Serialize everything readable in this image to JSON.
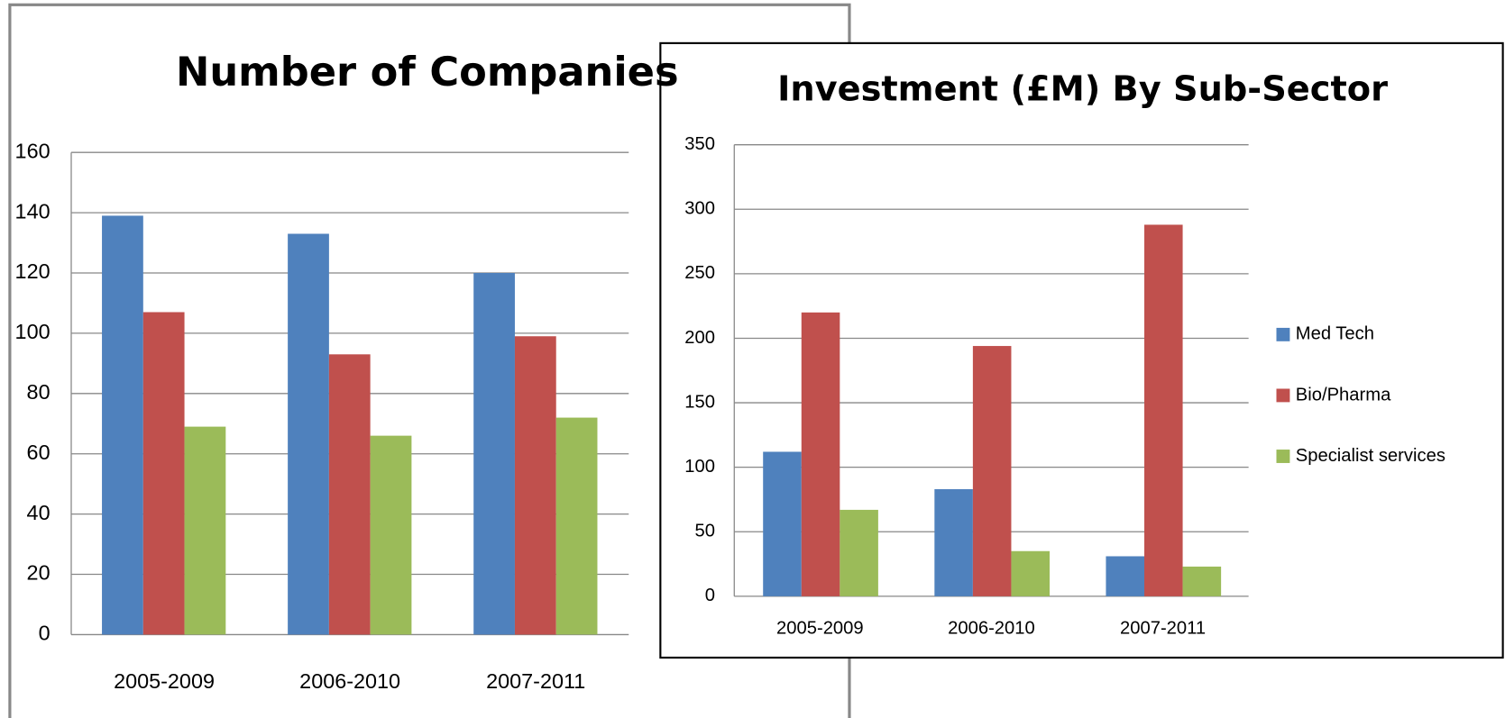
{
  "chart_data": [
    {
      "type": "bar",
      "title": "Number of Companies",
      "categories": [
        "2005-2009",
        "2006-2010",
        "2007-2011"
      ],
      "series": [
        {
          "color": "#4f81bd",
          "values": [
            139,
            133,
            120
          ]
        },
        {
          "color": "#c0504d",
          "values": [
            107,
            93,
            99
          ]
        },
        {
          "color": "#9bbb59",
          "values": [
            69,
            66,
            72
          ]
        }
      ],
      "ylim": [
        0,
        160
      ],
      "yticks": [
        0,
        20,
        40,
        60,
        80,
        100,
        120,
        140,
        160
      ],
      "grid": true
    },
    {
      "type": "bar",
      "title": "Investment (£M) By Sub-Sector",
      "categories": [
        "2005-2009",
        "2006-2010",
        "2007-2011"
      ],
      "series": [
        {
          "name": "Med Tech",
          "color": "#4f81bd",
          "values": [
            112,
            83,
            31
          ]
        },
        {
          "name": "Bio/Pharma",
          "color": "#c0504d",
          "values": [
            220,
            194,
            288
          ]
        },
        {
          "name": "Specialist services",
          "color": "#9bbb59",
          "values": [
            67,
            35,
            23
          ]
        }
      ],
      "ylim": [
        0,
        350
      ],
      "yticks": [
        0,
        50,
        100,
        150,
        200,
        250,
        300,
        350
      ],
      "grid": true,
      "legend": "right"
    }
  ]
}
